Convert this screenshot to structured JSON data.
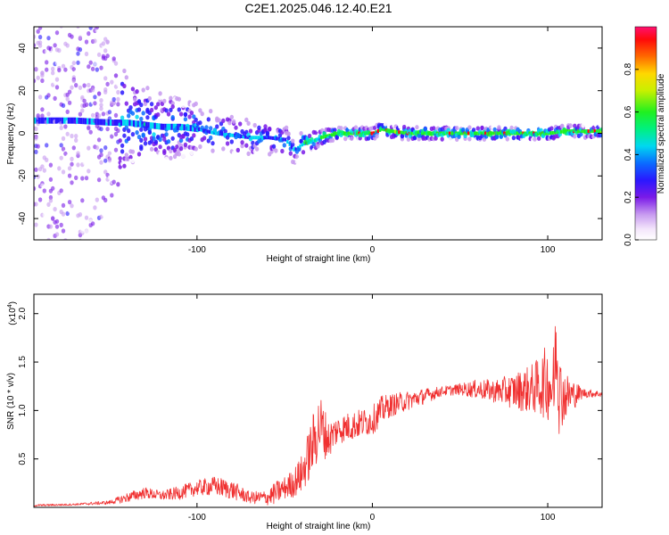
{
  "title": "C2E1.2025.046.12.40.E21",
  "colors": {
    "snr_line": "#f03030"
  },
  "chart_data": [
    {
      "type": "heatmap",
      "xlabel": "Height of straight line (km)",
      "ylabel": "Frequency (Hz)",
      "xlim": [
        -193,
        131
      ],
      "ylim": [
        -50,
        50
      ],
      "xticks": [
        -100,
        0,
        100
      ],
      "xtick_labels": [
        "-100",
        "0",
        "100"
      ],
      "yticks": [
        -40,
        -20,
        0,
        20,
        40
      ],
      "ytick_labels": [
        "-40",
        "-20",
        "0",
        "20",
        "40"
      ],
      "colorbar": {
        "label": "Normalized spectral amplitude",
        "range": [
          0,
          1
        ],
        "ticks": [
          0.0,
          0.2,
          0.4,
          0.6,
          0.8
        ],
        "tick_labels": [
          "0.0",
          "0.2",
          "0.4",
          "0.6",
          "0.8"
        ],
        "colormap": "rainbow (white-violet-blue-cyan-green-yellow-red-magenta)"
      },
      "ridge": {
        "x": [
          -193,
          -170,
          -150,
          -140,
          -130,
          -120,
          -110,
          -100,
          -90,
          -80,
          -70,
          -60,
          -50,
          -45,
          -40,
          -35,
          -30,
          -25,
          -20,
          -10,
          0,
          5,
          10,
          20,
          40,
          60,
          80,
          100,
          110,
          131
        ],
        "y": [
          6,
          6,
          5,
          5,
          4,
          3,
          3,
          2,
          0,
          -1,
          -2,
          -2,
          -3,
          -8,
          -5,
          -4,
          -2,
          -1,
          0,
          0,
          0,
          2,
          1,
          0,
          0,
          0,
          0,
          0,
          1,
          1
        ],
        "noise_spread_hz": [
          60,
          60,
          40,
          22,
          18,
          16,
          14,
          12,
          10,
          9,
          8,
          8,
          7,
          7,
          6,
          5,
          4,
          3,
          3,
          3,
          3,
          3,
          3,
          3,
          3,
          3,
          3,
          3,
          3,
          3
        ]
      }
    },
    {
      "type": "line",
      "xlabel": "Height of straight line (km)",
      "ylabel": "SNR (10 * v/v)",
      "y_multiplier_label": "(x10",
      "y_multiplier_exp": "4",
      "y_multiplier_close": ")",
      "xlim": [
        -193,
        131
      ],
      "ylim": [
        0,
        2.2
      ],
      "xticks": [
        -100,
        0,
        100
      ],
      "xtick_labels": [
        "-100",
        "0",
        "100"
      ],
      "yticks": [
        0.5,
        1.0,
        1.5,
        2.0
      ],
      "ytick_labels": [
        "0.5",
        "1.0",
        "1.5",
        "2.0"
      ],
      "series": [
        {
          "x": [
            -193,
            -170,
            -150,
            -140,
            -130,
            -120,
            -110,
            -100,
            -90,
            -80,
            -70,
            -60,
            -55,
            -50,
            -45,
            -40,
            -35,
            -30,
            -25,
            -20,
            -10,
            0,
            5,
            10,
            20,
            30,
            40,
            50,
            60,
            70,
            80,
            90,
            95,
            100,
            105,
            110,
            120,
            131
          ],
          "y": [
            0.02,
            0.03,
            0.05,
            0.1,
            0.15,
            0.12,
            0.15,
            0.2,
            0.22,
            0.18,
            0.1,
            0.1,
            0.15,
            0.2,
            0.25,
            0.35,
            0.6,
            0.85,
            0.7,
            0.8,
            0.85,
            0.9,
            1.0,
            1.05,
            1.1,
            1.15,
            1.2,
            1.22,
            1.22,
            1.2,
            1.2,
            1.22,
            1.25,
            1.3,
            1.2,
            1.15,
            1.18,
            1.17
          ],
          "noise_amplitude": [
            0.01,
            0.01,
            0.02,
            0.05,
            0.06,
            0.05,
            0.07,
            0.08,
            0.1,
            0.1,
            0.06,
            0.08,
            0.12,
            0.12,
            0.15,
            0.2,
            0.3,
            0.35,
            0.2,
            0.15,
            0.15,
            0.15,
            0.15,
            0.12,
            0.1,
            0.08,
            0.05,
            0.06,
            0.1,
            0.12,
            0.18,
            0.25,
            0.3,
            0.4,
            0.5,
            0.25,
            0.05,
            0.03
          ]
        }
      ]
    }
  ]
}
